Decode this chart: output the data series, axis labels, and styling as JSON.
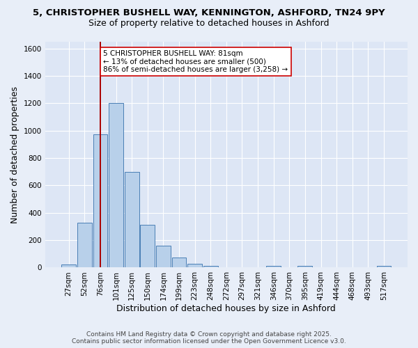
{
  "title_line1": "5, CHRISTOPHER BUSHELL WAY, KENNINGTON, ASHFORD, TN24 9PY",
  "title_line2": "Size of property relative to detached houses in Ashford",
  "xlabel": "Distribution of detached houses by size in Ashford",
  "ylabel": "Number of detached properties",
  "categories": [
    "27sqm",
    "52sqm",
    "76sqm",
    "101sqm",
    "125sqm",
    "150sqm",
    "174sqm",
    "199sqm",
    "223sqm",
    "248sqm",
    "272sqm",
    "297sqm",
    "321sqm",
    "346sqm",
    "370sqm",
    "395sqm",
    "419sqm",
    "444sqm",
    "468sqm",
    "493sqm",
    "517sqm"
  ],
  "values": [
    25,
    330,
    975,
    1205,
    700,
    310,
    160,
    75,
    30,
    15,
    0,
    0,
    0,
    10,
    0,
    10,
    0,
    0,
    0,
    0,
    10
  ],
  "bar_color": "#b8d0ea",
  "bar_edge_color": "#4a7fb5",
  "vline_x": 2,
  "vline_color": "#aa0000",
  "annotation_text": "5 CHRISTOPHER BUSHELL WAY: 81sqm\n← 13% of detached houses are smaller (500)\n86% of semi-detached houses are larger (3,258) →",
  "annotation_box_color": "white",
  "annotation_box_edge_color": "#cc0000",
  "ylim": [
    0,
    1650
  ],
  "yticks": [
    0,
    200,
    400,
    600,
    800,
    1000,
    1200,
    1400,
    1600
  ],
  "footer_line1": "Contains HM Land Registry data © Crown copyright and database right 2025.",
  "footer_line2": "Contains public sector information licensed under the Open Government Licence v3.0.",
  "bg_color": "#e8eef8",
  "plot_bg_color": "#dde6f5",
  "grid_color": "#ffffff",
  "title_fontsize": 9.5,
  "subtitle_fontsize": 9,
  "axis_label_fontsize": 9,
  "tick_fontsize": 7.5,
  "annotation_fontsize": 7.5,
  "footer_fontsize": 6.5
}
